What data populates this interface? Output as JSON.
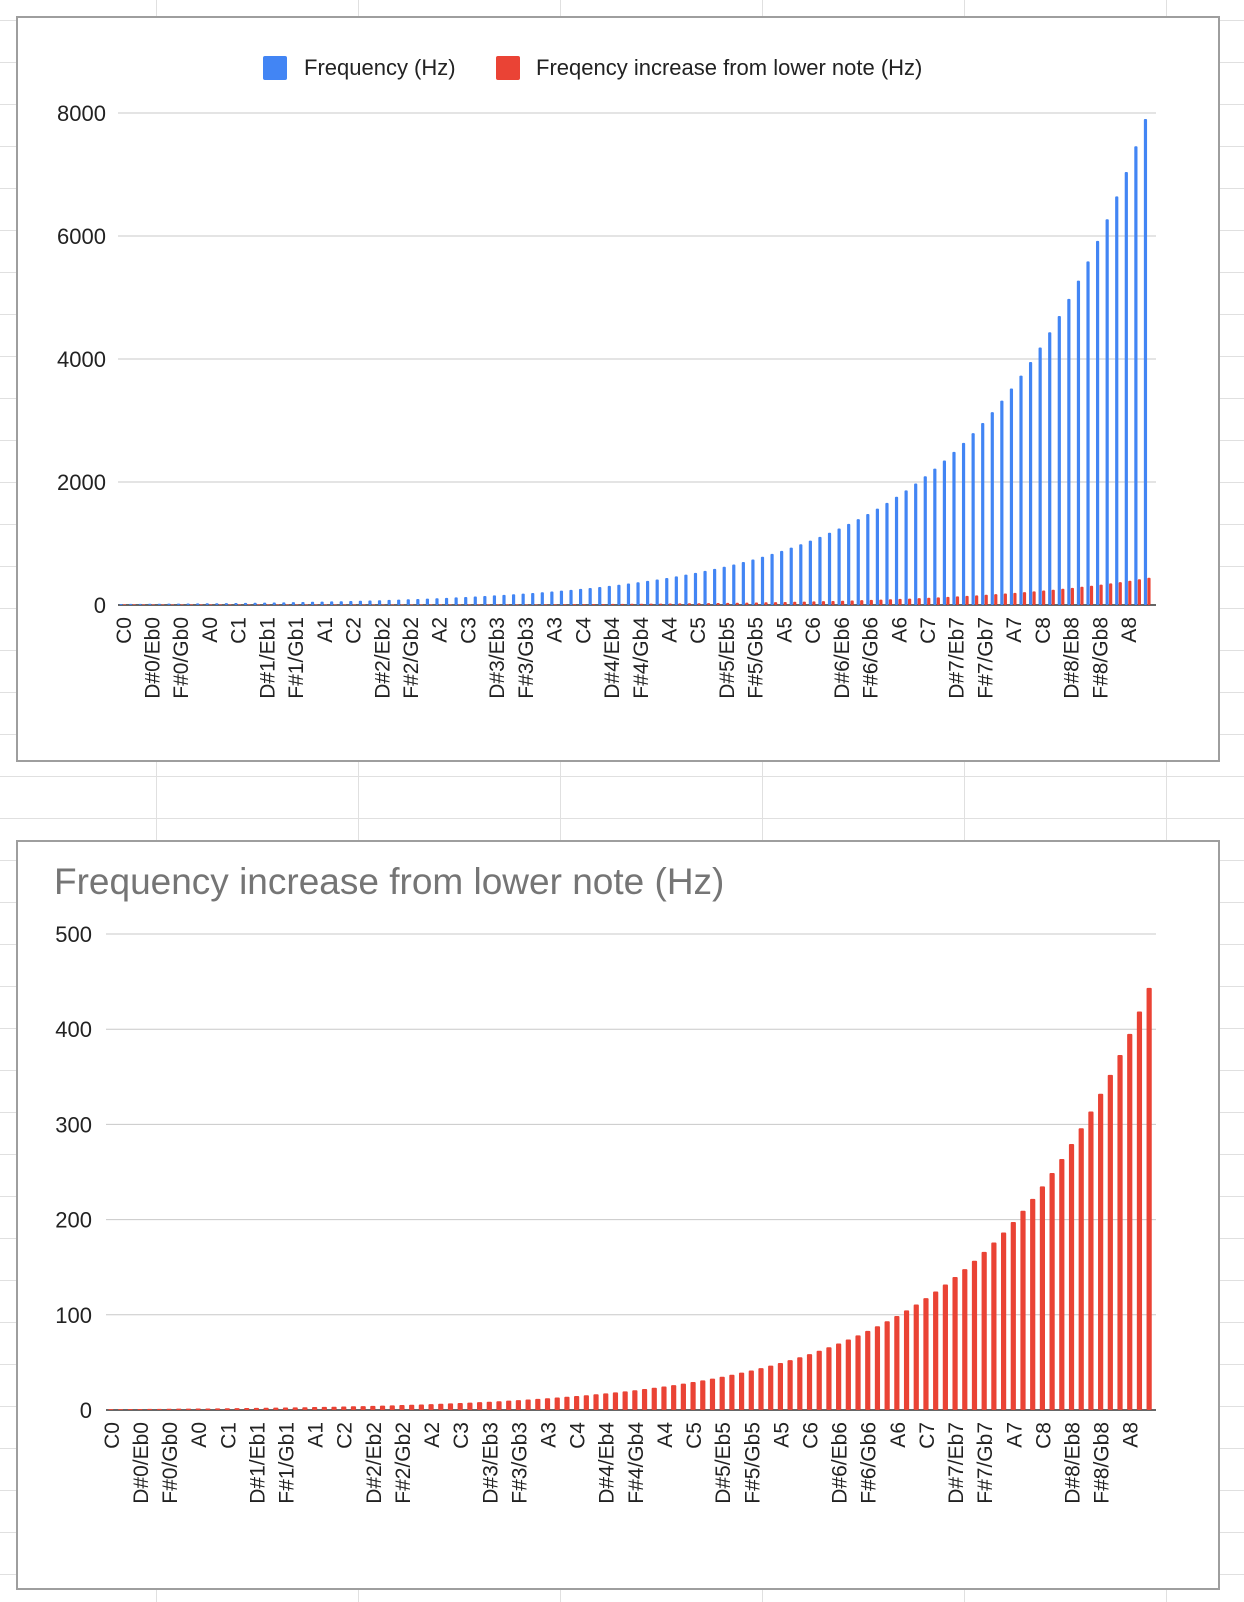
{
  "chart_data": [
    {
      "type": "bar",
      "title": "",
      "xlabel": "",
      "ylabel": "",
      "ylim": [
        0,
        8000
      ],
      "yticks": [
        0,
        2000,
        4000,
        6000,
        8000
      ],
      "grid": true,
      "legend_position": "top",
      "series": [
        {
          "name": "Frequency (Hz)",
          "color": "#4285f4",
          "values": [
            16.35,
            17.32,
            18.35,
            19.45,
            20.6,
            21.83,
            23.12,
            24.5,
            25.96,
            27.5,
            29.14,
            30.87,
            32.7,
            34.65,
            36.71,
            38.89,
            41.2,
            43.65,
            46.25,
            49,
            51.91,
            55,
            58.27,
            61.74,
            65.41,
            69.3,
            73.42,
            77.78,
            82.41,
            87.31,
            92.5,
            98,
            103.83,
            110,
            116.54,
            123.47,
            130.81,
            138.59,
            146.83,
            155.56,
            164.81,
            174.61,
            185,
            196,
            207.65,
            220,
            233.08,
            246.94,
            261.63,
            277.18,
            293.66,
            311.13,
            329.63,
            349.23,
            369.99,
            392,
            415.3,
            440,
            466.16,
            493.88,
            523.25,
            554.37,
            587.33,
            622.25,
            659.25,
            698.46,
            739.99,
            783.99,
            830.61,
            880,
            932.33,
            987.77,
            1046.5,
            1108.73,
            1174.66,
            1244.51,
            1318.51,
            1396.91,
            1479.98,
            1567.98,
            1661.22,
            1760,
            1864.66,
            1975.53,
            2093,
            2217.46,
            2349.32,
            2489.02,
            2637.02,
            2793.83,
            2959.96,
            3135.96,
            3322.44,
            3520,
            3729.31,
            3951.07,
            4186.01,
            4434.92,
            4698.63,
            4978.03,
            5274.04,
            5587.65,
            5919.91,
            6271.93,
            6644.88,
            7040,
            7458.62,
            7902.13
          ]
        },
        {
          "name": "Freqency increase from lower note (Hz)",
          "color": "#ea4335",
          "values": [
            0.92,
            0.97,
            1.03,
            1.1,
            1.15,
            1.23,
            1.29,
            1.38,
            1.46,
            1.54,
            1.64,
            1.73,
            1.83,
            1.95,
            2.06,
            2.18,
            2.31,
            2.45,
            2.6,
            2.75,
            2.91,
            3.09,
            3.27,
            3.47,
            3.67,
            3.89,
            4.12,
            4.36,
            4.63,
            4.9,
            5.19,
            5.5,
            5.83,
            6.17,
            6.54,
            6.93,
            7.34,
            7.78,
            8.24,
            8.73,
            9.25,
            9.8,
            10.38,
            11,
            11.65,
            12.35,
            13.08,
            13.86,
            14.69,
            15.55,
            16.48,
            17.46,
            18.5,
            19.6,
            20.76,
            22,
            23.31,
            24.69,
            26.16,
            27.72,
            29.37,
            31.11,
            32.96,
            34.92,
            37,
            39.2,
            41.53,
            44,
            46.62,
            49.39,
            52.33,
            55.44,
            58.73,
            62.23,
            65.93,
            69.85,
            74,
            78.4,
            83.06,
            88,
            93.23,
            98.77,
            104.65,
            110.87,
            117.47,
            124.45,
            131.85,
            139.69,
            148,
            156.8,
            166.12,
            176,
            186.46,
            197.54,
            209.29,
            221.74,
            234.93,
            248.9,
            263.7,
            279.39,
            296.01,
            313.6,
            332.24,
            352,
            372.93,
            395.1,
            418.58,
            443.47
          ]
        }
      ],
      "tick_labels": [
        "C0",
        "D#0/Eb0",
        "F#0/Gb0",
        "A0",
        "C1",
        "D#1/Eb1",
        "F#1/Gb1",
        "A1",
        "C2",
        "D#2/Eb2",
        "F#2/Gb2",
        "A2",
        "C3",
        "D#3/Eb3",
        "F#3/Gb3",
        "A3",
        "C4",
        "D#4/Eb4",
        "F#4/Gb4",
        "A4",
        "C5",
        "D#5/Eb5",
        "F#5/Gb5",
        "A5",
        "C6",
        "D#6/Eb6",
        "F#6/Gb6",
        "A6",
        "C7",
        "D#7/Eb7",
        "F#7/Gb7",
        "A7",
        "C8",
        "D#8/Eb8",
        "F#8/Gb8",
        "A8"
      ]
    },
    {
      "type": "bar",
      "title": "Frequency increase from lower note (Hz)",
      "xlabel": "",
      "ylabel": "",
      "ylim": [
        0,
        500
      ],
      "yticks": [
        0,
        100,
        200,
        300,
        400,
        500
      ],
      "grid": true,
      "legend_position": "none",
      "series": [
        {
          "color": "#ea4335",
          "values": [
            0.92,
            0.97,
            1.03,
            1.1,
            1.15,
            1.23,
            1.29,
            1.38,
            1.46,
            1.54,
            1.64,
            1.73,
            1.83,
            1.95,
            2.06,
            2.18,
            2.31,
            2.45,
            2.6,
            2.75,
            2.91,
            3.09,
            3.27,
            3.47,
            3.67,
            3.89,
            4.12,
            4.36,
            4.63,
            4.9,
            5.19,
            5.5,
            5.83,
            6.17,
            6.54,
            6.93,
            7.34,
            7.78,
            8.24,
            8.73,
            9.25,
            9.8,
            10.38,
            11,
            11.65,
            12.35,
            13.08,
            13.86,
            14.69,
            15.55,
            16.48,
            17.46,
            18.5,
            19.6,
            20.76,
            22,
            23.31,
            24.69,
            26.16,
            27.72,
            29.37,
            31.11,
            32.96,
            34.92,
            37,
            39.2,
            41.53,
            44,
            46.62,
            49.39,
            52.33,
            55.44,
            58.73,
            62.23,
            65.93,
            69.85,
            74,
            78.4,
            83.06,
            88,
            93.23,
            98.77,
            104.65,
            110.87,
            117.47,
            124.45,
            131.85,
            139.69,
            148,
            156.8,
            166.12,
            176,
            186.46,
            197.54,
            209.29,
            221.74,
            234.93,
            248.9,
            263.7,
            279.39,
            296.01,
            313.6,
            332.24,
            352,
            372.93,
            395.1,
            418.58,
            443.47
          ]
        }
      ],
      "tick_labels": [
        "C0",
        "D#0/Eb0",
        "F#0/Gb0",
        "A0",
        "C1",
        "D#1/Eb1",
        "F#1/Gb1",
        "A1",
        "C2",
        "D#2/Eb2",
        "F#2/Gb2",
        "A2",
        "C3",
        "D#3/Eb3",
        "F#3/Gb3",
        "A3",
        "C4",
        "D#4/Eb4",
        "F#4/Gb4",
        "A4",
        "C5",
        "D#5/Eb5",
        "F#5/Gb5",
        "A5",
        "C6",
        "D#6/Eb6",
        "F#6/Gb6",
        "A6",
        "C7",
        "D#7/Eb7",
        "F#7/Gb7",
        "A7",
        "C8",
        "D#8/Eb8",
        "F#8/Gb8",
        "A8"
      ]
    }
  ]
}
